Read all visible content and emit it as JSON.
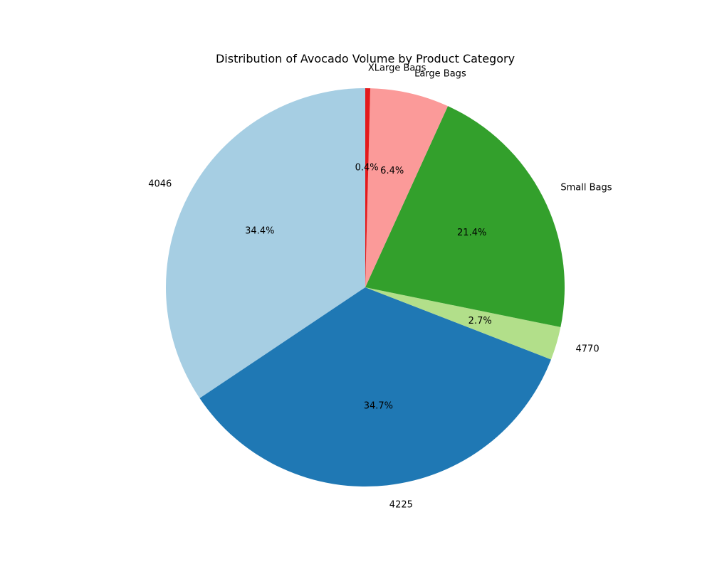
{
  "chart_data": {
    "type": "pie",
    "title": "Distribution of Avocado Volume by Product Category",
    "start_angle_deg": 90,
    "direction": "counterclockwise",
    "slices": [
      {
        "label": "4046",
        "value": 34.4,
        "pct_label": "34.4%",
        "color": "#a6cee3"
      },
      {
        "label": "4225",
        "value": 34.7,
        "pct_label": "34.7%",
        "color": "#1f78b4"
      },
      {
        "label": "4770",
        "value": 2.7,
        "pct_label": "2.7%",
        "color": "#b2df8a"
      },
      {
        "label": "Small Bags",
        "value": 21.4,
        "pct_label": "21.4%",
        "color": "#33a02c"
      },
      {
        "label": "Large Bags",
        "value": 6.4,
        "pct_label": "6.4%",
        "color": "#fb9a99"
      },
      {
        "label": "XLarge Bags",
        "value": 0.4,
        "pct_label": "0.4%",
        "color": "#e31a1c"
      }
    ]
  }
}
